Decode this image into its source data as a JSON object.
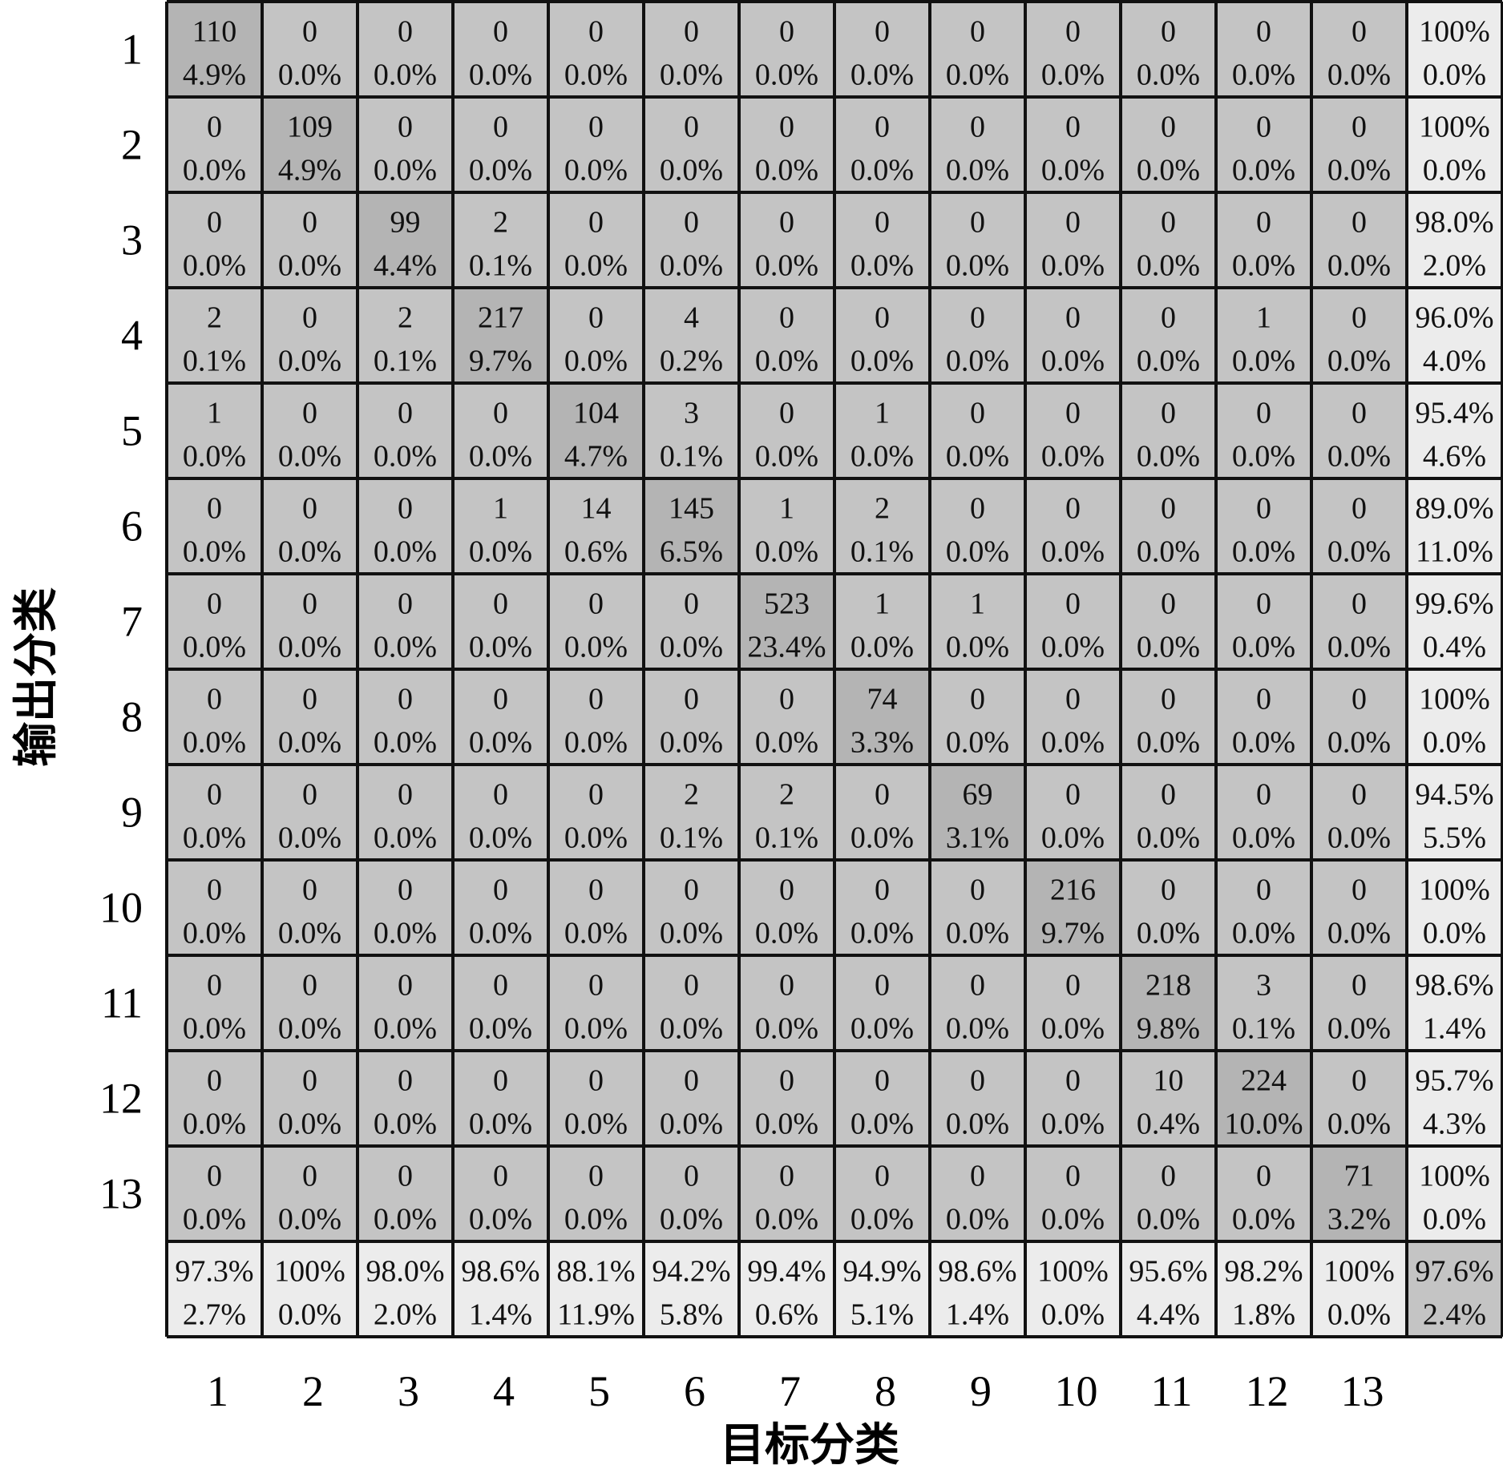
{
  "chart_data": {
    "type": "heatmap",
    "xlabel": "目标分类",
    "ylabel": "输出分类",
    "x_tick_labels": [
      "1",
      "2",
      "3",
      "4",
      "5",
      "6",
      "7",
      "8",
      "9",
      "10",
      "11",
      "12",
      "13"
    ],
    "y_tick_labels": [
      "1",
      "2",
      "3",
      "4",
      "5",
      "6",
      "7",
      "8",
      "9",
      "10",
      "11",
      "12",
      "13"
    ],
    "cells": [
      [
        [
          "110",
          "4.9%"
        ],
        [
          "0",
          "0.0%"
        ],
        [
          "0",
          "0.0%"
        ],
        [
          "0",
          "0.0%"
        ],
        [
          "0",
          "0.0%"
        ],
        [
          "0",
          "0.0%"
        ],
        [
          "0",
          "0.0%"
        ],
        [
          "0",
          "0.0%"
        ],
        [
          "0",
          "0.0%"
        ],
        [
          "0",
          "0.0%"
        ],
        [
          "0",
          "0.0%"
        ],
        [
          "0",
          "0.0%"
        ],
        [
          "0",
          "0.0%"
        ]
      ],
      [
        [
          "0",
          "0.0%"
        ],
        [
          "109",
          "4.9%"
        ],
        [
          "0",
          "0.0%"
        ],
        [
          "0",
          "0.0%"
        ],
        [
          "0",
          "0.0%"
        ],
        [
          "0",
          "0.0%"
        ],
        [
          "0",
          "0.0%"
        ],
        [
          "0",
          "0.0%"
        ],
        [
          "0",
          "0.0%"
        ],
        [
          "0",
          "0.0%"
        ],
        [
          "0",
          "0.0%"
        ],
        [
          "0",
          "0.0%"
        ],
        [
          "0",
          "0.0%"
        ]
      ],
      [
        [
          "0",
          "0.0%"
        ],
        [
          "0",
          "0.0%"
        ],
        [
          "99",
          "4.4%"
        ],
        [
          "2",
          "0.1%"
        ],
        [
          "0",
          "0.0%"
        ],
        [
          "0",
          "0.0%"
        ],
        [
          "0",
          "0.0%"
        ],
        [
          "0",
          "0.0%"
        ],
        [
          "0",
          "0.0%"
        ],
        [
          "0",
          "0.0%"
        ],
        [
          "0",
          "0.0%"
        ],
        [
          "0",
          "0.0%"
        ],
        [
          "0",
          "0.0%"
        ]
      ],
      [
        [
          "2",
          "0.1%"
        ],
        [
          "0",
          "0.0%"
        ],
        [
          "2",
          "0.1%"
        ],
        [
          "217",
          "9.7%"
        ],
        [
          "0",
          "0.0%"
        ],
        [
          "4",
          "0.2%"
        ],
        [
          "0",
          "0.0%"
        ],
        [
          "0",
          "0.0%"
        ],
        [
          "0",
          "0.0%"
        ],
        [
          "0",
          "0.0%"
        ],
        [
          "0",
          "0.0%"
        ],
        [
          "1",
          "0.0%"
        ],
        [
          "0",
          "0.0%"
        ]
      ],
      [
        [
          "1",
          "0.0%"
        ],
        [
          "0",
          "0.0%"
        ],
        [
          "0",
          "0.0%"
        ],
        [
          "0",
          "0.0%"
        ],
        [
          "104",
          "4.7%"
        ],
        [
          "3",
          "0.1%"
        ],
        [
          "0",
          "0.0%"
        ],
        [
          "1",
          "0.0%"
        ],
        [
          "0",
          "0.0%"
        ],
        [
          "0",
          "0.0%"
        ],
        [
          "0",
          "0.0%"
        ],
        [
          "0",
          "0.0%"
        ],
        [
          "0",
          "0.0%"
        ]
      ],
      [
        [
          "0",
          "0.0%"
        ],
        [
          "0",
          "0.0%"
        ],
        [
          "0",
          "0.0%"
        ],
        [
          "1",
          "0.0%"
        ],
        [
          "14",
          "0.6%"
        ],
        [
          "145",
          "6.5%"
        ],
        [
          "1",
          "0.0%"
        ],
        [
          "2",
          "0.1%"
        ],
        [
          "0",
          "0.0%"
        ],
        [
          "0",
          "0.0%"
        ],
        [
          "0",
          "0.0%"
        ],
        [
          "0",
          "0.0%"
        ],
        [
          "0",
          "0.0%"
        ]
      ],
      [
        [
          "0",
          "0.0%"
        ],
        [
          "0",
          "0.0%"
        ],
        [
          "0",
          "0.0%"
        ],
        [
          "0",
          "0.0%"
        ],
        [
          "0",
          "0.0%"
        ],
        [
          "0",
          "0.0%"
        ],
        [
          "523",
          "23.4%"
        ],
        [
          "1",
          "0.0%"
        ],
        [
          "1",
          "0.0%"
        ],
        [
          "0",
          "0.0%"
        ],
        [
          "0",
          "0.0%"
        ],
        [
          "0",
          "0.0%"
        ],
        [
          "0",
          "0.0%"
        ]
      ],
      [
        [
          "0",
          "0.0%"
        ],
        [
          "0",
          "0.0%"
        ],
        [
          "0",
          "0.0%"
        ],
        [
          "0",
          "0.0%"
        ],
        [
          "0",
          "0.0%"
        ],
        [
          "0",
          "0.0%"
        ],
        [
          "0",
          "0.0%"
        ],
        [
          "74",
          "3.3%"
        ],
        [
          "0",
          "0.0%"
        ],
        [
          "0",
          "0.0%"
        ],
        [
          "0",
          "0.0%"
        ],
        [
          "0",
          "0.0%"
        ],
        [
          "0",
          "0.0%"
        ]
      ],
      [
        [
          "0",
          "0.0%"
        ],
        [
          "0",
          "0.0%"
        ],
        [
          "0",
          "0.0%"
        ],
        [
          "0",
          "0.0%"
        ],
        [
          "0",
          "0.0%"
        ],
        [
          "2",
          "0.1%"
        ],
        [
          "2",
          "0.1%"
        ],
        [
          "0",
          "0.0%"
        ],
        [
          "69",
          "3.1%"
        ],
        [
          "0",
          "0.0%"
        ],
        [
          "0",
          "0.0%"
        ],
        [
          "0",
          "0.0%"
        ],
        [
          "0",
          "0.0%"
        ]
      ],
      [
        [
          "0",
          "0.0%"
        ],
        [
          "0",
          "0.0%"
        ],
        [
          "0",
          "0.0%"
        ],
        [
          "0",
          "0.0%"
        ],
        [
          "0",
          "0.0%"
        ],
        [
          "0",
          "0.0%"
        ],
        [
          "0",
          "0.0%"
        ],
        [
          "0",
          "0.0%"
        ],
        [
          "0",
          "0.0%"
        ],
        [
          "216",
          "9.7%"
        ],
        [
          "0",
          "0.0%"
        ],
        [
          "0",
          "0.0%"
        ],
        [
          "0",
          "0.0%"
        ]
      ],
      [
        [
          "0",
          "0.0%"
        ],
        [
          "0",
          "0.0%"
        ],
        [
          "0",
          "0.0%"
        ],
        [
          "0",
          "0.0%"
        ],
        [
          "0",
          "0.0%"
        ],
        [
          "0",
          "0.0%"
        ],
        [
          "0",
          "0.0%"
        ],
        [
          "0",
          "0.0%"
        ],
        [
          "0",
          "0.0%"
        ],
        [
          "0",
          "0.0%"
        ],
        [
          "218",
          "9.8%"
        ],
        [
          "3",
          "0.1%"
        ],
        [
          "0",
          "0.0%"
        ]
      ],
      [
        [
          "0",
          "0.0%"
        ],
        [
          "0",
          "0.0%"
        ],
        [
          "0",
          "0.0%"
        ],
        [
          "0",
          "0.0%"
        ],
        [
          "0",
          "0.0%"
        ],
        [
          "0",
          "0.0%"
        ],
        [
          "0",
          "0.0%"
        ],
        [
          "0",
          "0.0%"
        ],
        [
          "0",
          "0.0%"
        ],
        [
          "0",
          "0.0%"
        ],
        [
          "10",
          "0.4%"
        ],
        [
          "224",
          "10.0%"
        ],
        [
          "0",
          "0.0%"
        ]
      ],
      [
        [
          "0",
          "0.0%"
        ],
        [
          "0",
          "0.0%"
        ],
        [
          "0",
          "0.0%"
        ],
        [
          "0",
          "0.0%"
        ],
        [
          "0",
          "0.0%"
        ],
        [
          "0",
          "0.0%"
        ],
        [
          "0",
          "0.0%"
        ],
        [
          "0",
          "0.0%"
        ],
        [
          "0",
          "0.0%"
        ],
        [
          "0",
          "0.0%"
        ],
        [
          "0",
          "0.0%"
        ],
        [
          "0",
          "0.0%"
        ],
        [
          "71",
          "3.2%"
        ]
      ]
    ],
    "row_summary": [
      [
        "100%",
        "0.0%"
      ],
      [
        "100%",
        "0.0%"
      ],
      [
        "98.0%",
        "2.0%"
      ],
      [
        "96.0%",
        "4.0%"
      ],
      [
        "95.4%",
        "4.6%"
      ],
      [
        "89.0%",
        "11.0%"
      ],
      [
        "99.6%",
        "0.4%"
      ],
      [
        "100%",
        "0.0%"
      ],
      [
        "94.5%",
        "5.5%"
      ],
      [
        "100%",
        "0.0%"
      ],
      [
        "98.6%",
        "1.4%"
      ],
      [
        "95.7%",
        "4.3%"
      ],
      [
        "100%",
        "0.0%"
      ]
    ],
    "column_summary": [
      [
        "97.3%",
        "2.7%"
      ],
      [
        "100%",
        "0.0%"
      ],
      [
        "98.0%",
        "2.0%"
      ],
      [
        "98.6%",
        "1.4%"
      ],
      [
        "88.1%",
        "11.9%"
      ],
      [
        "94.2%",
        "5.8%"
      ],
      [
        "99.4%",
        "0.6%"
      ],
      [
        "94.9%",
        "5.1%"
      ],
      [
        "98.6%",
        "1.4%"
      ],
      [
        "100%",
        "0.0%"
      ],
      [
        "95.6%",
        "4.4%"
      ],
      [
        "98.2%",
        "1.8%"
      ],
      [
        "100%",
        "0.0%"
      ]
    ],
    "overall": [
      "97.6%",
      "2.4%"
    ],
    "colors": {
      "cell_background": "#c4c4c4",
      "diagonal_background": "#b4b4b4",
      "summary_background": "#ececec",
      "overall_background": "#c4c4c4",
      "grid_line": "#111111",
      "text": "#111111"
    },
    "grid": true
  }
}
